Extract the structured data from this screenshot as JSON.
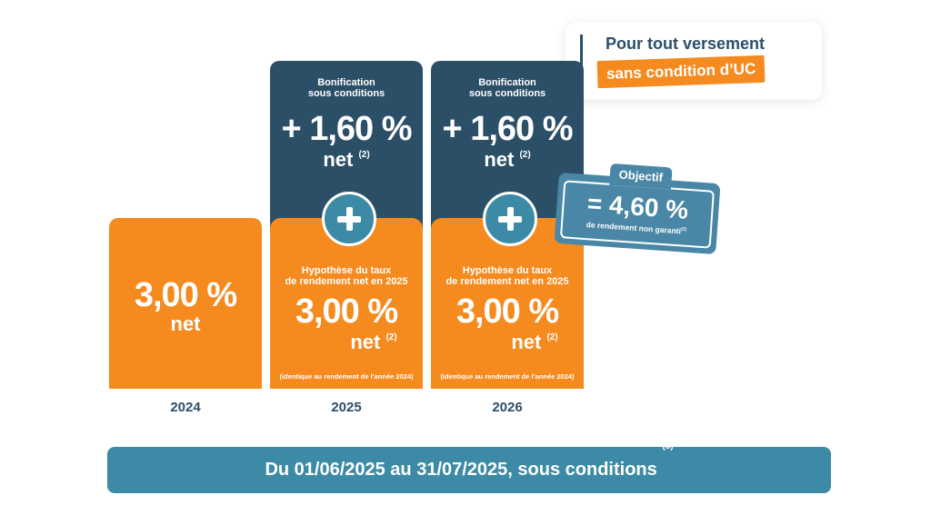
{
  "header": {
    "line1": "Pour tout versement",
    "line2": "sans condition d’UC"
  },
  "columns": [
    {
      "year": "2024",
      "rate": "3,00 %",
      "net": "net"
    },
    {
      "year": "2025",
      "bonus_title_1": "Bonification",
      "bonus_title_2": "sous conditions",
      "bonus_value": "+ 1,60 %",
      "bonus_net": "net",
      "bonus_note": "(2)",
      "hyp_title_1": "Hypothèse du taux",
      "hyp_title_2": "de rendement net en 2025",
      "hyp_value": "3,00 %",
      "hyp_net": "net",
      "hyp_note": "(2)",
      "identical": "(identique au rendement de l’année 2024)"
    },
    {
      "year": "2026",
      "bonus_title_1": "Bonification",
      "bonus_title_2": "sous conditions",
      "bonus_value": "+ 1,60 %",
      "bonus_net": "net",
      "bonus_note": "(2)",
      "hyp_title_1": "Hypothèse du taux",
      "hyp_title_2": "de rendement net en 2025",
      "hyp_value": "3,00 %",
      "hyp_net": "net",
      "hyp_note": "(2)",
      "identical": "(identique au rendement de l’année 2024)"
    }
  ],
  "objective": {
    "label": "Objectif",
    "value": "= 4,60 %",
    "subtitle": "de rendement non garanti",
    "note": "(2)"
  },
  "footer": {
    "text": "Du 01/06/2025 au 31/07/2025, sous conditions",
    "note": "(3)"
  },
  "colors": {
    "orange": "#f58a1f",
    "navy": "#2c4f68",
    "teal": "#3c8aa6"
  },
  "icons": [
    "plus-icon"
  ]
}
